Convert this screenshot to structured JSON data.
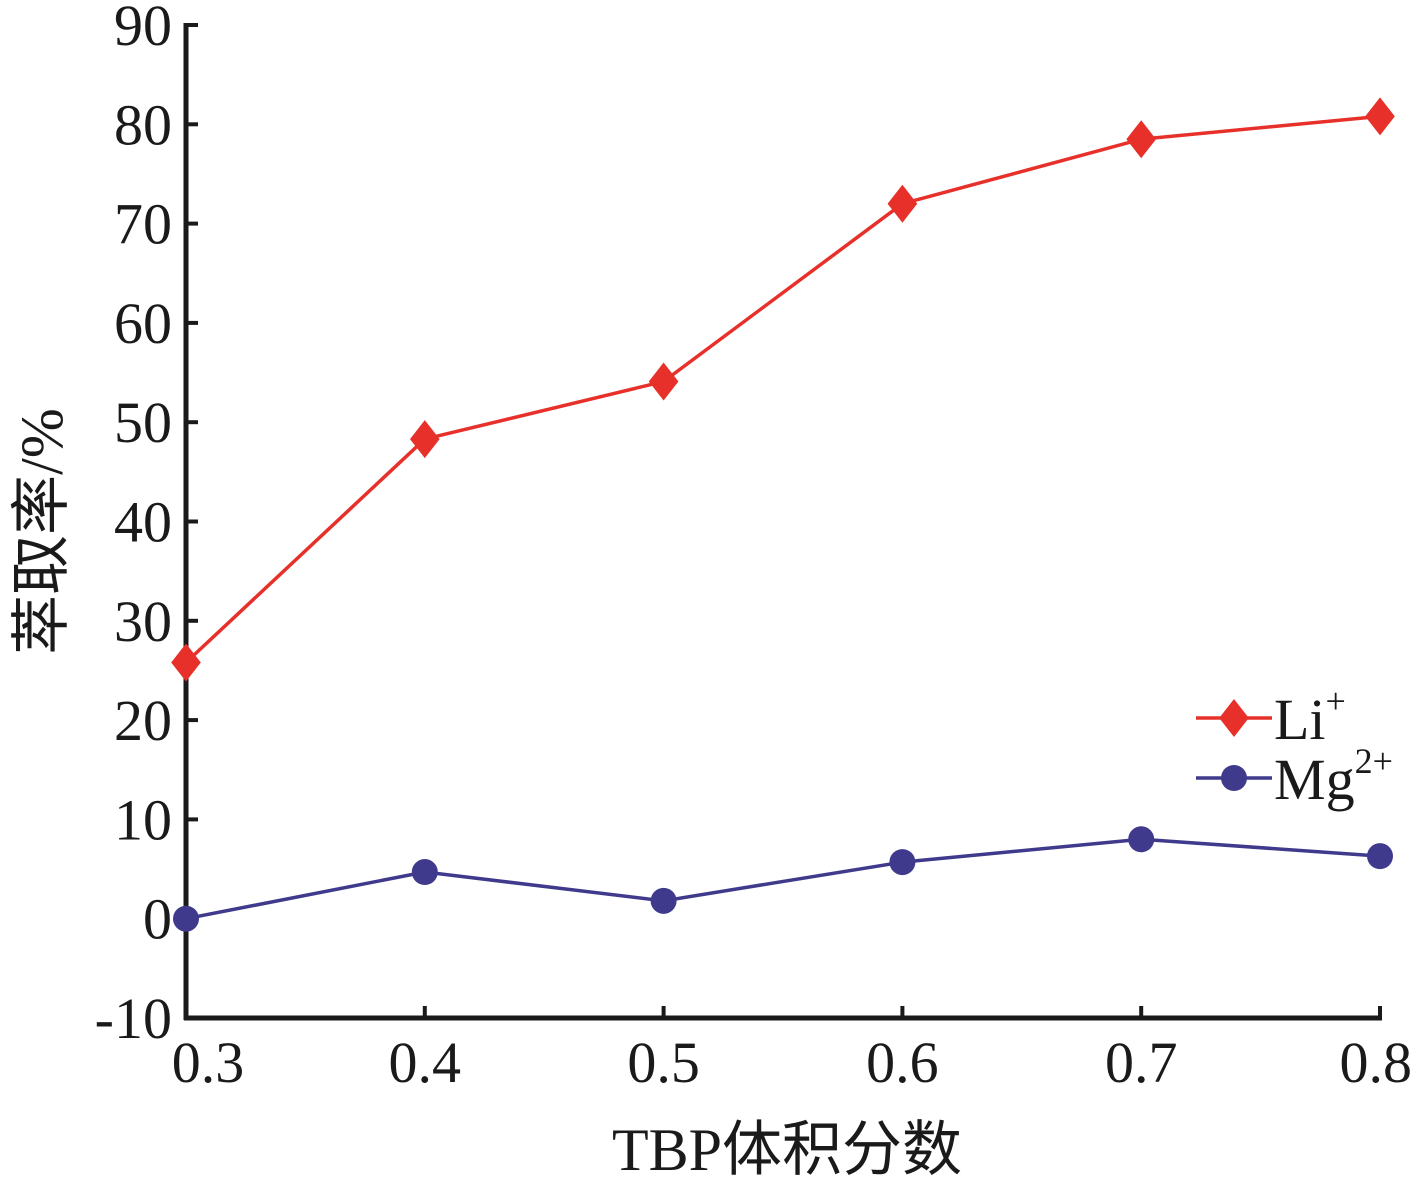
{
  "chart_data": {
    "type": "line",
    "xlabel": "TBP体积分数",
    "ylabel": "萃取率/%",
    "x": [
      0.3,
      0.4,
      0.5,
      0.6,
      0.7,
      0.8
    ],
    "x_tick_labels": [
      "0.3",
      "0.4",
      "0.5",
      "0.6",
      "0.7",
      "0.8"
    ],
    "xlim": [
      0.3,
      0.8
    ],
    "ylim": [
      -10,
      90
    ],
    "y_ticks": [
      -10,
      0,
      10,
      20,
      30,
      40,
      50,
      60,
      70,
      80,
      90
    ],
    "y_tick_labels": [
      "-10",
      "0",
      "10",
      "20",
      "30",
      "40",
      "50",
      "60",
      "70",
      "80",
      "90"
    ],
    "grid": false,
    "legend_position": "right",
    "series": [
      {
        "name": "Li",
        "sup": "+",
        "marker": "diamond",
        "color": "#e8302a",
        "values": [
          25.8,
          48.3,
          54.1,
          72.0,
          78.5,
          80.8
        ]
      },
      {
        "name": "Mg",
        "sup": "2+",
        "marker": "circle",
        "color": "#3f3a8c",
        "values": [
          0.0,
          4.7,
          1.8,
          5.7,
          8.0,
          6.3
        ]
      }
    ]
  }
}
